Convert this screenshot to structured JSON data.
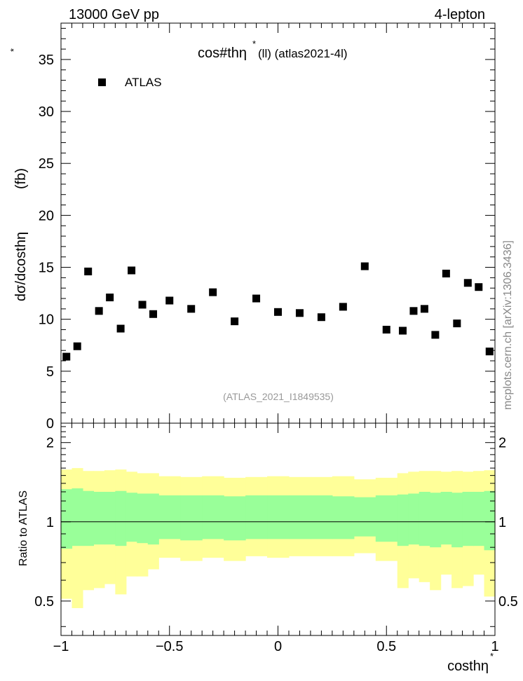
{
  "header": {
    "energy": "13000 GeV pp",
    "process": "4-lepton",
    "plot_title": "cos#thη",
    "plot_title_sup": "*",
    "plot_title_suffix": "(ll) (atlas2021-4l)",
    "analysis_id": "(ATLAS_2021_I1849535)",
    "side_label": "mcplots.cern.ch [arXiv:1306.3436]"
  },
  "chart_data": [
    {
      "type": "scatter",
      "name": "main",
      "ylabel": "dσ/dcosthη",
      "ylabel_sup": "*",
      "ylabel_unit": "(fb)",
      "xlim": [
        -1.0,
        1.0
      ],
      "ylim": [
        0,
        38.5
      ],
      "yticks": [
        0,
        5,
        10,
        15,
        20,
        25,
        30,
        35
      ],
      "ytick_labels": [
        "0",
        "5",
        "10",
        "15",
        "20",
        "25",
        "30",
        "35"
      ],
      "legend": [
        {
          "label": "ATLAS",
          "marker": "square",
          "color": "#000000"
        }
      ],
      "legend_position": "top-left",
      "series": [
        {
          "name": "ATLAS",
          "x": [
            -0.975,
            -0.925,
            -0.875,
            -0.825,
            -0.775,
            -0.725,
            -0.675,
            -0.625,
            -0.575,
            -0.5,
            -0.4,
            -0.3,
            -0.2,
            -0.1,
            0.0,
            0.1,
            0.2,
            0.3,
            0.4,
            0.5,
            0.575,
            0.625,
            0.675,
            0.725,
            0.775,
            0.825,
            0.875,
            0.925,
            0.975
          ],
          "y": [
            6.4,
            7.4,
            14.6,
            10.8,
            12.1,
            9.1,
            14.7,
            11.4,
            10.5,
            11.8,
            11.0,
            12.6,
            9.8,
            12.0,
            10.7,
            10.6,
            10.2,
            11.2,
            15.1,
            9.0,
            8.9,
            10.8,
            11.0,
            8.5,
            14.4,
            9.6,
            13.5,
            13.1,
            6.9
          ]
        }
      ]
    },
    {
      "type": "area",
      "name": "ratio",
      "ylabel": "Ratio to ATLAS",
      "xlabel": "costhη",
      "xlabel_sup": "*",
      "xlim": [
        -1.0,
        1.0
      ],
      "ylim": [
        0.37,
        2.37
      ],
      "xticks": [
        -1.0,
        -0.5,
        0.0,
        0.5,
        1.0
      ],
      "xtick_labels": [
        "−1",
        "−0.5",
        "0",
        "0.5",
        "1"
      ],
      "yticks": [
        0.5,
        1.0,
        2.0
      ],
      "ytick_labels": [
        "0.5",
        "1",
        "2"
      ],
      "reference_line": 1.0,
      "bin_edges": [
        -1.0,
        -0.95,
        -0.9,
        -0.85,
        -0.8,
        -0.75,
        -0.7,
        -0.65,
        -0.6,
        -0.55,
        -0.45,
        -0.35,
        -0.25,
        -0.15,
        -0.05,
        0.05,
        0.15,
        0.25,
        0.35,
        0.45,
        0.55,
        0.6,
        0.65,
        0.7,
        0.75,
        0.8,
        0.85,
        0.9,
        0.95,
        1.0
      ],
      "green_band": {
        "color": "#99ff99",
        "low": [
          0.79,
          0.81,
          0.81,
          0.82,
          0.82,
          0.81,
          0.84,
          0.83,
          0.82,
          0.86,
          0.85,
          0.86,
          0.85,
          0.86,
          0.86,
          0.86,
          0.86,
          0.86,
          0.88,
          0.84,
          0.81,
          0.82,
          0.81,
          0.8,
          0.82,
          0.8,
          0.81,
          0.81,
          0.78
        ],
        "high": [
          1.33,
          1.34,
          1.31,
          1.3,
          1.3,
          1.31,
          1.29,
          1.28,
          1.28,
          1.26,
          1.26,
          1.26,
          1.25,
          1.26,
          1.26,
          1.26,
          1.26,
          1.25,
          1.24,
          1.26,
          1.27,
          1.28,
          1.3,
          1.29,
          1.3,
          1.29,
          1.3,
          1.3,
          1.31
        ]
      },
      "yellow_band": {
        "color": "#ffff99",
        "low": [
          0.51,
          0.47,
          0.55,
          0.56,
          0.58,
          0.53,
          0.62,
          0.62,
          0.66,
          0.73,
          0.71,
          0.73,
          0.71,
          0.74,
          0.73,
          0.74,
          0.74,
          0.74,
          0.76,
          0.71,
          0.56,
          0.61,
          0.59,
          0.55,
          0.63,
          0.56,
          0.57,
          0.63,
          0.52
        ],
        "high": [
          1.58,
          1.6,
          1.56,
          1.56,
          1.57,
          1.58,
          1.55,
          1.53,
          1.53,
          1.49,
          1.48,
          1.49,
          1.47,
          1.48,
          1.49,
          1.48,
          1.48,
          1.49,
          1.45,
          1.47,
          1.53,
          1.55,
          1.56,
          1.56,
          1.55,
          1.56,
          1.55,
          1.56,
          1.57
        ]
      }
    }
  ]
}
